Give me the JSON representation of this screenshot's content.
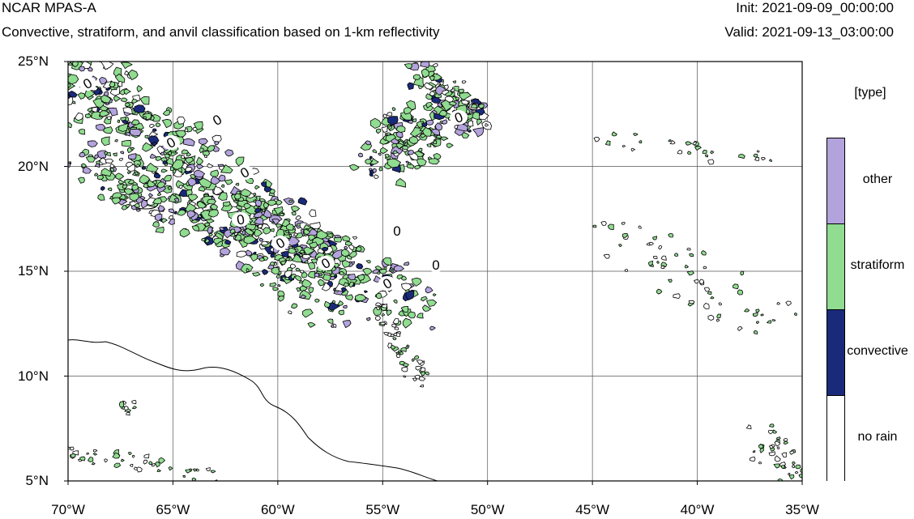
{
  "header": {
    "title": "NCAR MPAS-A",
    "subtitle": "Convective, stratiform, and anvil classification based on 1-km reflectivity",
    "init": "Init: 2021-09-09_00:00:00",
    "valid": "Valid: 2021-09-13_03:00:00"
  },
  "map": {
    "lon_range": [
      -70,
      -35
    ],
    "lat_range": [
      5,
      25
    ],
    "grid": true,
    "contour_label": "0",
    "y_ticks": [
      {
        "lat": 25,
        "label": "25°N"
      },
      {
        "lat": 20,
        "label": "20°N"
      },
      {
        "lat": 15,
        "label": "15°N"
      },
      {
        "lat": 10,
        "label": "10°N"
      },
      {
        "lat": 5,
        "label": "5°N"
      }
    ],
    "x_ticks": [
      {
        "lon": -70,
        "label": "70°W"
      },
      {
        "lon": -65,
        "label": "65°W"
      },
      {
        "lon": -60,
        "label": "60°W"
      },
      {
        "lon": -55,
        "label": "55°W"
      },
      {
        "lon": -50,
        "label": "50°W"
      },
      {
        "lon": -45,
        "label": "45°W"
      },
      {
        "lon": -40,
        "label": "40°W"
      },
      {
        "lon": -35,
        "label": "35°W"
      }
    ]
  },
  "legend": {
    "title": "[type]",
    "items": [
      {
        "label": "other",
        "color": "#b3a3dc"
      },
      {
        "label": "stratiform",
        "color": "#90dc90"
      },
      {
        "label": "convective",
        "color": "#1a2a7a"
      },
      {
        "label": "no rain",
        "color": "#ffffff"
      }
    ]
  },
  "colors": {
    "stratiform": "#90dc90",
    "other": "#b3a3dc",
    "convective": "#1a2a7a",
    "coast": "#000000"
  }
}
